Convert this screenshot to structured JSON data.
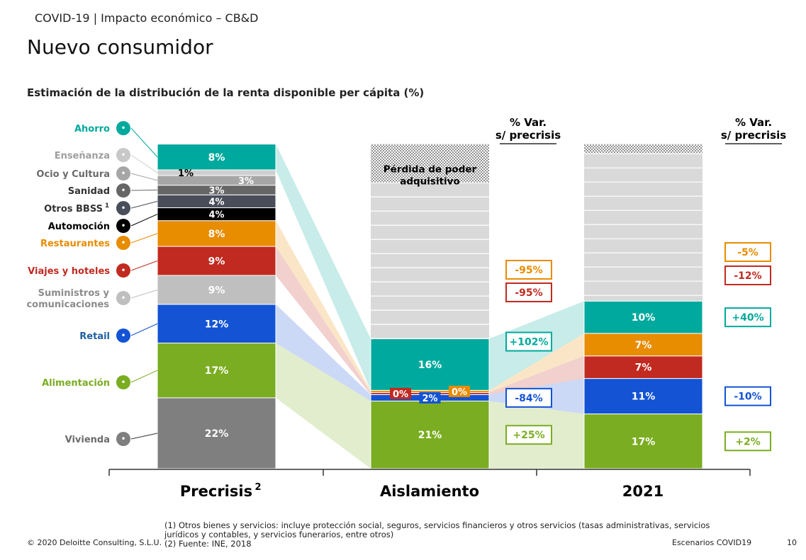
{
  "header": {
    "breadcrumb": "COVID-19 | Impacto económico – CB&D",
    "title": "Nuevo consumidor",
    "subtitle": "Estimación de la distribución de la renta disponible per cápita (%)"
  },
  "chart_data": {
    "type": "bar",
    "title": "Estimación de la distribución de la renta disponible per cápita (%)",
    "stacked": true,
    "categories": [
      "Precrisis",
      "Aislamiento",
      "2021"
    ],
    "category_superscripts": [
      "2",
      "",
      ""
    ],
    "var_header": "% Var. s/ precrisis",
    "loss_label": "Pérdida de poder adquisitivo",
    "loss_values": [
      0,
      12,
      3
    ],
    "series": [
      {
        "name": "Vivienda",
        "color": "#7f7f7f",
        "icon": "house-icon",
        "values": [
          22,
          null,
          null
        ],
        "labels": [
          "22%",
          "",
          ""
        ],
        "var": [
          null,
          null,
          null
        ]
      },
      {
        "name": "Alimentación",
        "color": "#7aad21",
        "icon": "apple-icon",
        "values": [
          17,
          21,
          17
        ],
        "labels": [
          "17%",
          "21%",
          "17%"
        ],
        "var": [
          null,
          "+25%",
          "+2%"
        ]
      },
      {
        "name": "Retail",
        "color": "#1353d4",
        "icon": "shirt-icon",
        "values": [
          12,
          2,
          11
        ],
        "labels": [
          "12%",
          "2%",
          "11%"
        ],
        "var": [
          null,
          "-84%",
          "-10%"
        ]
      },
      {
        "name": "Suministros y comunicaciones",
        "color": "#bfbfbf",
        "icon": "flame-icon",
        "values": [
          9,
          null,
          null
        ],
        "labels": [
          "9%",
          "",
          ""
        ],
        "var": [
          null,
          null,
          null
        ]
      },
      {
        "name": "Viajes y hoteles",
        "color": "#c12a20",
        "icon": "plane-icon",
        "values": [
          9,
          0,
          7
        ],
        "labels": [
          "9%",
          "0%",
          "7%"
        ],
        "var": [
          null,
          "-95%",
          "-12%"
        ]
      },
      {
        "name": "Restaurantes",
        "color": "#e88c00",
        "icon": "cutlery-icon",
        "values": [
          8,
          0,
          7
        ],
        "labels": [
          "8%",
          "0%",
          "7%"
        ],
        "var": [
          null,
          "-95%",
          "-5%"
        ]
      },
      {
        "name": "Automoción",
        "color": "#000000",
        "icon": "car-icon",
        "values": [
          4,
          null,
          null
        ],
        "labels": [
          "4%",
          "",
          ""
        ],
        "var": [
          null,
          null,
          null
        ]
      },
      {
        "name": "Otros BBSS",
        "superscript": "1",
        "color": "#4a4d5a",
        "icon": "grid-icon",
        "values": [
          4,
          null,
          null
        ],
        "labels": [
          "4%",
          "",
          ""
        ],
        "var": [
          null,
          null,
          null
        ]
      },
      {
        "name": "Sanidad",
        "color": "#666666",
        "icon": "medical-icon",
        "values": [
          3,
          null,
          null
        ],
        "labels": [
          "3%",
          "",
          ""
        ],
        "var": [
          null,
          null,
          null
        ]
      },
      {
        "name": "Ocio y Cultura",
        "color": "#a6a6a6",
        "icon": "music-icon",
        "values": [
          3,
          null,
          null
        ],
        "labels": [
          "3%",
          "",
          ""
        ],
        "var": [
          null,
          null,
          null
        ]
      },
      {
        "name": "Enseñanza",
        "color": "#cfcfcf",
        "icon": "book-icon",
        "values": [
          1,
          null,
          null
        ],
        "labels": [
          "1%",
          "",
          ""
        ],
        "var": [
          null,
          null,
          null
        ]
      },
      {
        "name": "Ahorro",
        "color": "#00a99d",
        "icon": "moneybag-icon",
        "values": [
          8,
          16,
          10
        ],
        "labels": [
          "8%",
          "16%",
          "10%"
        ],
        "var": [
          null,
          "+102%",
          "+40%"
        ]
      }
    ],
    "label_colors": {
      "Ahorro": "#00a99d",
      "Enseñanza": "#9e9e9e",
      "Ocio y Cultura": "#6b6b6b",
      "Sanidad": "#333333",
      "Otros BBSS": "#333333",
      "Automoción": "#000000",
      "Restaurantes": "#e88c00",
      "Viajes y hoteles": "#c12a20",
      "Suministros y comunicaciones": "#8c8c8c",
      "Retail": "#1f5f9e",
      "Alimentación": "#7aad21",
      "Vivienda": "#6b6b6b"
    }
  },
  "footer": {
    "copyright": "© 2020 Deloitte Consulting, S.L.U.",
    "note1": "(1) Otros bienes y servicios: incluye protección social, seguros, servicios financieros y otros servicios (tasas administrativas, servicios jurídicos y contables, y servicios funerarios, entre otros)",
    "note2": "(2) Fuente: INE, 2018",
    "section": "Escenarios COVID19",
    "page": "10"
  }
}
